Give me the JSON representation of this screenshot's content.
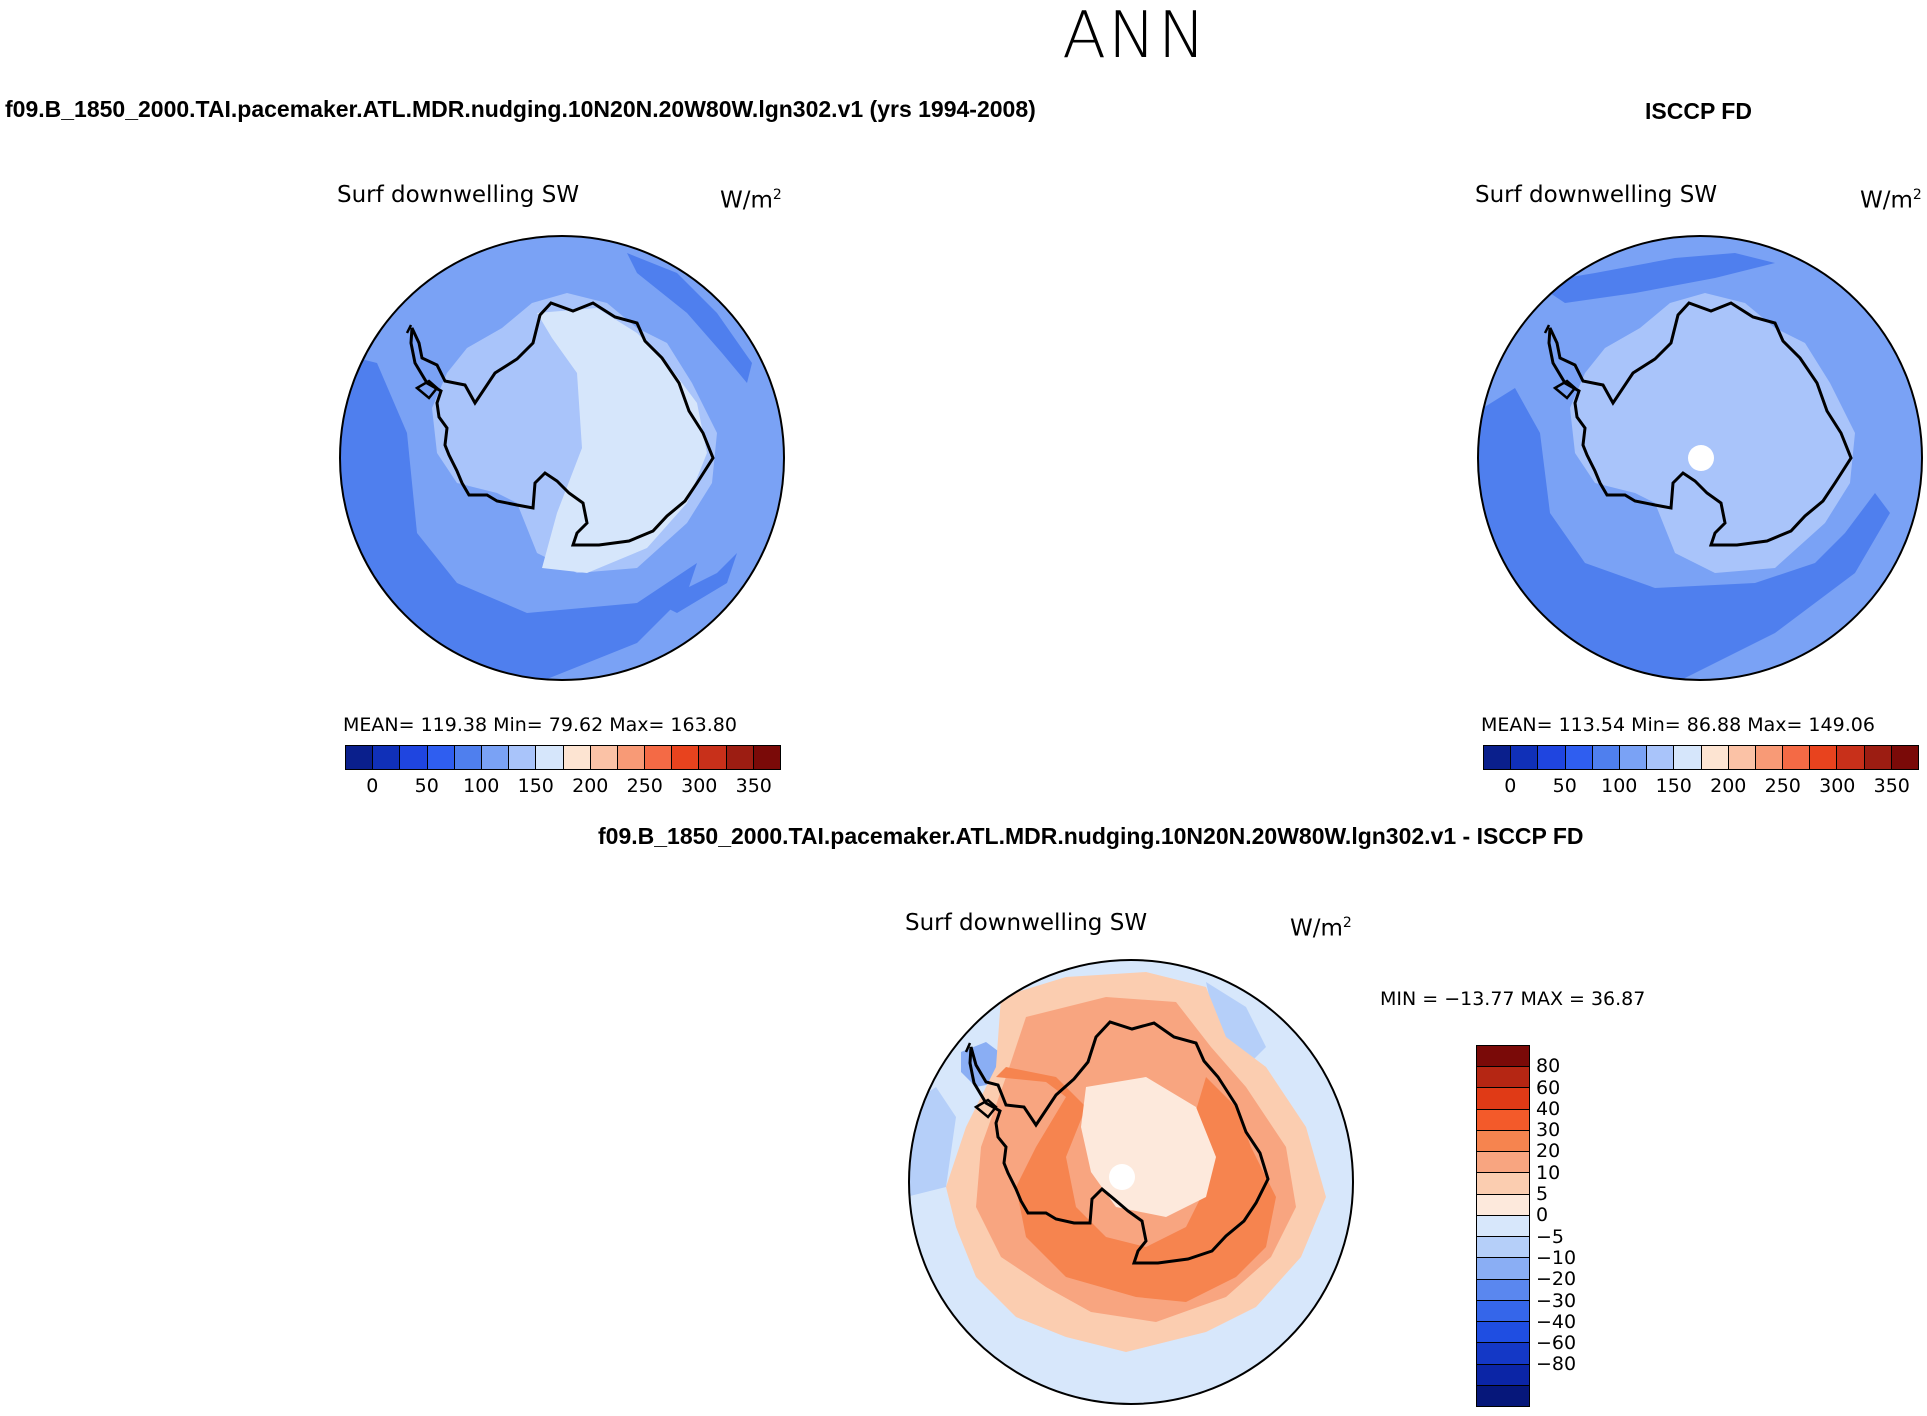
{
  "season": "ANN",
  "panel_left": {
    "title": "f09.B_1850_2000.TAI.pacemaker.ATL.MDR.nudging.10N20N.20W80W.lgn302.v1 (yrs 1994-2008)",
    "variable": "Surf downwelling SW",
    "unit": "W/m",
    "unit_exp": "2",
    "stats": "MEAN= 119.38   Min=   79.62   Max= 163.80",
    "mean": 119.38,
    "min": 79.62,
    "max": 163.8
  },
  "panel_right": {
    "title": "ISCCP FD",
    "variable": "Surf downwelling SW",
    "unit": "W/m",
    "unit_exp": "2",
    "stats": "MEAN= 113.54   Min=   86.88   Max= 149.06",
    "mean": 113.54,
    "min": 86.88,
    "max": 149.06
  },
  "panel_diff": {
    "title": "f09.B_1850_2000.TAI.pacemaker.ATL.MDR.nudging.10N20N.20W80W.lgn302.v1 - ISCCP FD",
    "variable": "Surf downwelling SW",
    "unit": "W/m",
    "unit_exp": "2",
    "stats": "MIN = −13.77  MAX =   36.87",
    "min": -13.77,
    "max": 36.87
  },
  "colorbar_abs": {
    "colors": [
      "#0a1f8c",
      "#1030b8",
      "#1f45e0",
      "#2f5ef0",
      "#4f7fee",
      "#7aa2f5",
      "#a9c4fa",
      "#d6e6fb",
      "#fde4d2",
      "#fbc2a6",
      "#f89a76",
      "#f46a45",
      "#e8431e",
      "#c8301a",
      "#9c1d12",
      "#7a0a08"
    ],
    "ticks": [
      "0",
      "50",
      "100",
      "150",
      "200",
      "250",
      "300",
      "350"
    ]
  },
  "colorbar_diff": {
    "colors": [
      "#7a0a08",
      "#b52613",
      "#e03a16",
      "#f35a2a",
      "#f6844f",
      "#f8a580",
      "#fbcdb0",
      "#fde9dc",
      "#d7e7fb",
      "#b5cff9",
      "#8aaef4",
      "#5a87ef",
      "#3566ea",
      "#1f4ee2",
      "#1438c6",
      "#0b25a6",
      "#06177a"
    ],
    "ticks": [
      "80",
      "60",
      "40",
      "30",
      "20",
      "10",
      "5",
      "0",
      "−5",
      "−10",
      "−20",
      "−30",
      "−40",
      "−60",
      "−80"
    ]
  },
  "map_colors": {
    "ocean_a": "#7aa2f5",
    "ocean_b": "#4f7fee",
    "land_a": "#a9c4fa",
    "land_b": "#d6e6fb",
    "diff_bg": "#d7e7fb",
    "diff_a": "#fbcdb0",
    "diff_b": "#f8a580",
    "diff_c": "#f6844f",
    "diff_d": "#fde9dc",
    "diff_cool": "#b5cff9",
    "diff_cool2": "#8aaef4"
  }
}
